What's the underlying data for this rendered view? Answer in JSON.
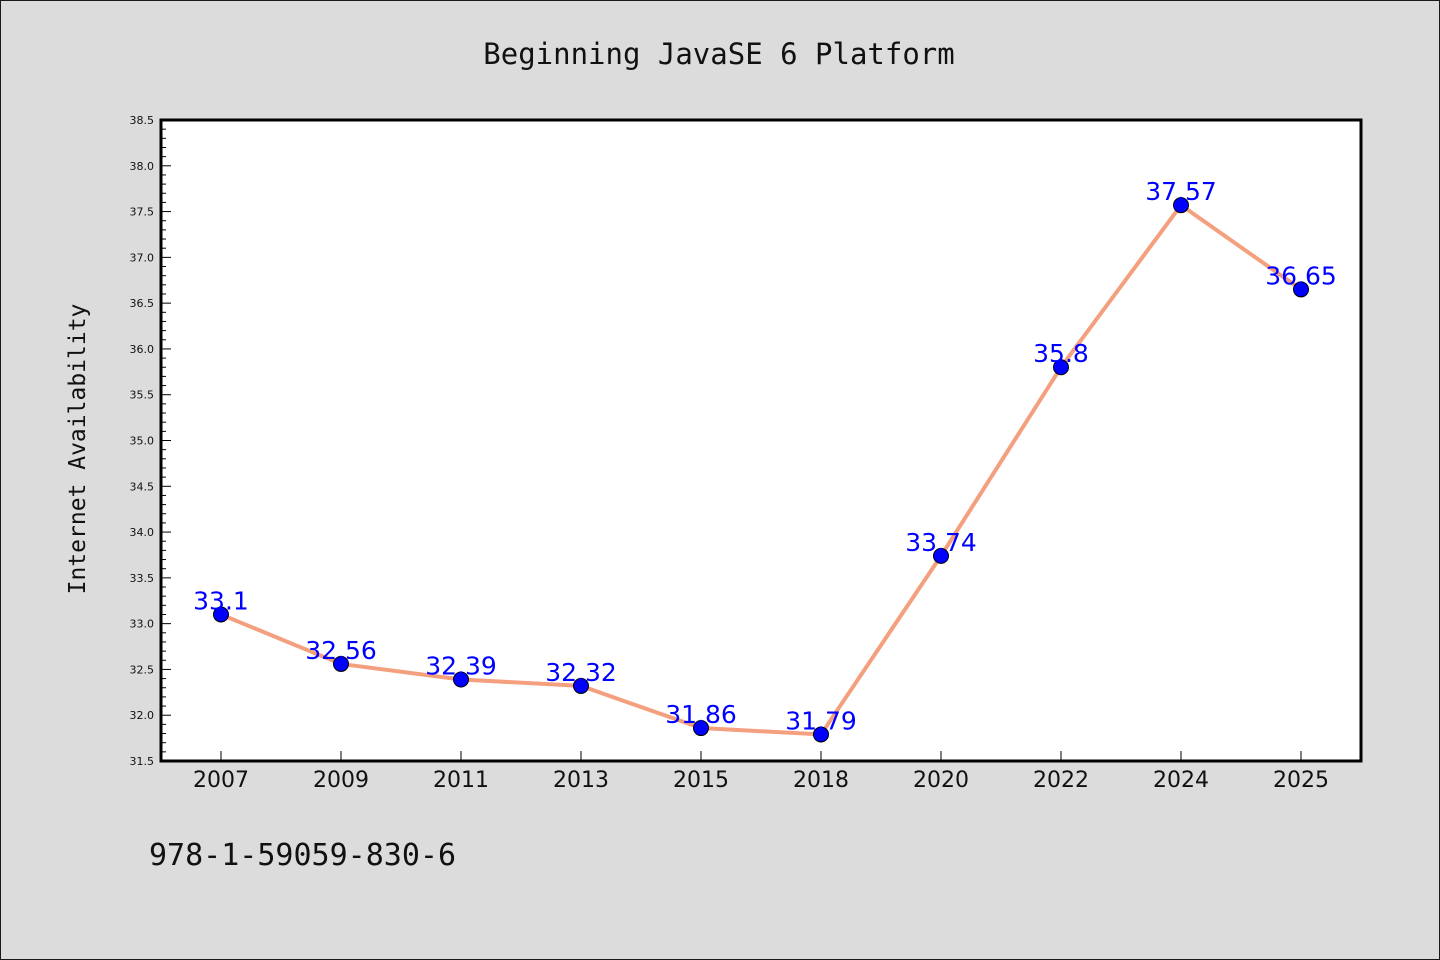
{
  "chart_data": {
    "type": "line",
    "title": "Beginning JavaSE 6 Platform",
    "xlabel": "",
    "ylabel": "Internet Availability",
    "categories": [
      "2007",
      "2009",
      "2011",
      "2013",
      "2015",
      "2018",
      "2020",
      "2022",
      "2024",
      "2025"
    ],
    "series": [
      {
        "values": [
          33.1,
          32.56,
          32.39,
          32.32,
          31.86,
          31.79,
          33.74,
          35.8,
          37.57,
          36.65
        ],
        "data_labels": [
          "33.1",
          "32.56",
          "32.39",
          "32.32",
          "31.86",
          "31.79",
          "33.74",
          "35.8",
          "37.57",
          "36.65"
        ]
      }
    ],
    "ylim": [
      31.5,
      38.5
    ],
    "yticks": [
      "31.5",
      "32.0",
      "32.5",
      "33.0",
      "33.5",
      "34.0",
      "34.5",
      "35.0",
      "35.5",
      "36.0",
      "36.5",
      "37.0",
      "37.5",
      "38.0",
      "38.5"
    ],
    "grid": false,
    "legend": "none",
    "line_color": "#f4a07e",
    "marker_color": "#0000ff",
    "label_color": "#0000ff",
    "background_color": "#dcdcdc",
    "plot_background_color": "#ffffff",
    "annotation": "978-1-59059-830-6"
  }
}
